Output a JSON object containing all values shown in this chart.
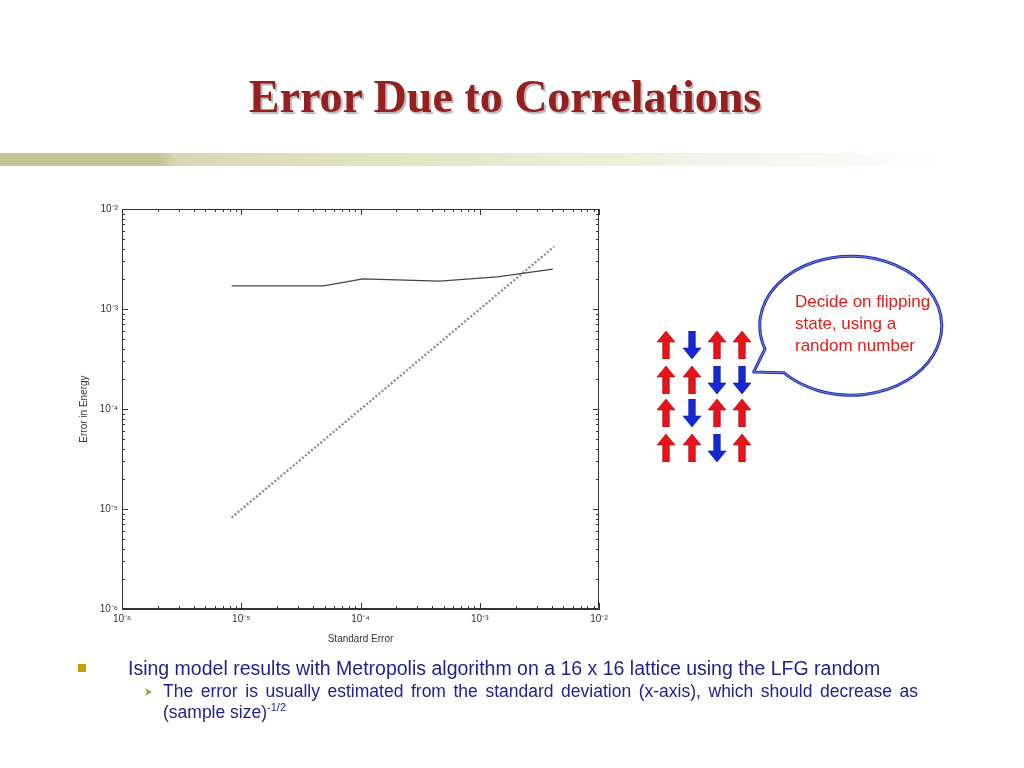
{
  "chart_data": {
    "type": "line",
    "title": "Error Due to Correlations",
    "xlabel": "Standard Error",
    "ylabel": "Error in Energy",
    "log": "xy",
    "xlim": [
      1e-06,
      0.01
    ],
    "ylim": [
      1e-06,
      0.01
    ],
    "xticks": [
      {
        "value": 1e-06,
        "label": "10⁻⁶"
      },
      {
        "value": 2e-06,
        "label": null
      },
      {
        "value": 3e-06,
        "label": null
      },
      {
        "value": 4e-06,
        "label": null
      },
      {
        "value": 5e-06,
        "label": null
      },
      {
        "value": 6e-06,
        "label": null
      },
      {
        "value": 7e-06,
        "label": null
      },
      {
        "value": 8e-06,
        "label": null
      },
      {
        "value": 9e-06,
        "label": null
      },
      {
        "value": 1e-05,
        "label": "10⁻⁵"
      },
      {
        "value": 2e-05,
        "label": null
      },
      {
        "value": 3e-05,
        "label": null
      },
      {
        "value": 4e-05,
        "label": null
      },
      {
        "value": 5e-05,
        "label": null
      },
      {
        "value": 6e-05,
        "label": null
      },
      {
        "value": 7e-05,
        "label": null
      },
      {
        "value": 8e-05,
        "label": null
      },
      {
        "value": 9e-05,
        "label": null
      },
      {
        "value": 0.0001,
        "label": "10⁻⁴"
      },
      {
        "value": 0.0002,
        "label": null
      },
      {
        "value": 0.0003,
        "label": null
      },
      {
        "value": 0.0004,
        "label": null
      },
      {
        "value": 0.0005,
        "label": null
      },
      {
        "value": 0.0006,
        "label": null
      },
      {
        "value": 0.0007,
        "label": null
      },
      {
        "value": 0.0008,
        "label": null
      },
      {
        "value": 0.0009,
        "label": null
      },
      {
        "value": 0.001,
        "label": "10⁻³"
      },
      {
        "value": 0.002,
        "label": null
      },
      {
        "value": 0.003,
        "label": null
      },
      {
        "value": 0.004,
        "label": null
      },
      {
        "value": 0.005,
        "label": null
      },
      {
        "value": 0.006,
        "label": null
      },
      {
        "value": 0.007,
        "label": null
      },
      {
        "value": 0.008,
        "label": null
      },
      {
        "value": 0.009,
        "label": null
      },
      {
        "value": 0.01,
        "label": "10⁻²"
      }
    ],
    "yticks": [
      {
        "value": 1e-06,
        "label": "10⁻⁶"
      },
      {
        "value": 2e-06,
        "label": null
      },
      {
        "value": 3e-06,
        "label": null
      },
      {
        "value": 4e-06,
        "label": null
      },
      {
        "value": 5e-06,
        "label": null
      },
      {
        "value": 6e-06,
        "label": null
      },
      {
        "value": 7e-06,
        "label": null
      },
      {
        "value": 8e-06,
        "label": null
      },
      {
        "value": 9e-06,
        "label": null
      },
      {
        "value": 1e-05,
        "label": "10⁻⁵"
      },
      {
        "value": 2e-05,
        "label": null
      },
      {
        "value": 3e-05,
        "label": null
      },
      {
        "value": 4e-05,
        "label": null
      },
      {
        "value": 5e-05,
        "label": null
      },
      {
        "value": 6e-05,
        "label": null
      },
      {
        "value": 7e-05,
        "label": null
      },
      {
        "value": 8e-05,
        "label": null
      },
      {
        "value": 9e-05,
        "label": null
      },
      {
        "value": 0.0001,
        "label": "10⁻⁴"
      },
      {
        "value": 0.0002,
        "label": null
      },
      {
        "value": 0.0003,
        "label": null
      },
      {
        "value": 0.0004,
        "label": null
      },
      {
        "value": 0.0005,
        "label": null
      },
      {
        "value": 0.0006,
        "label": null
      },
      {
        "value": 0.0007,
        "label": null
      },
      {
        "value": 0.0008,
        "label": null
      },
      {
        "value": 0.0009,
        "label": null
      },
      {
        "value": 0.001,
        "label": "10⁻³"
      },
      {
        "value": 0.002,
        "label": null
      },
      {
        "value": 0.003,
        "label": null
      },
      {
        "value": 0.004,
        "label": null
      },
      {
        "value": 0.005,
        "label": null
      },
      {
        "value": 0.006,
        "label": null
      },
      {
        "value": 0.007,
        "label": null
      },
      {
        "value": 0.008,
        "label": null
      },
      {
        "value": 0.009,
        "label": null
      },
      {
        "value": 0.01,
        "label": "10⁻²"
      }
    ],
    "legend": false,
    "marker": "none",
    "series": [
      {
        "color": "#444444",
        "line_style": "solid",
        "x": [
          8.3e-06,
          4.9e-05,
          0.000105,
          0.00046,
          0.0014,
          0.0041
        ],
        "values": [
          0.0017,
          0.0017,
          0.002,
          0.0019,
          0.0021,
          0.0025
        ]
      },
      {
        "color": "#8c8c8c",
        "line_style": "dotted",
        "x": [
          8.3e-06,
          0.0042
        ],
        "values": [
          8.2e-06,
          0.0042
        ]
      }
    ],
    "annotations": [
      "Decide on flipping state, using a random number",
      "Ising model results with Metropolis algorithm on a 16 x 16 lattice using the LFG random",
      "The error is usually estimated from the standard deviation (x-axis), which should decrease as (sample size)$^{-1/2}$"
    ]
  }
}
